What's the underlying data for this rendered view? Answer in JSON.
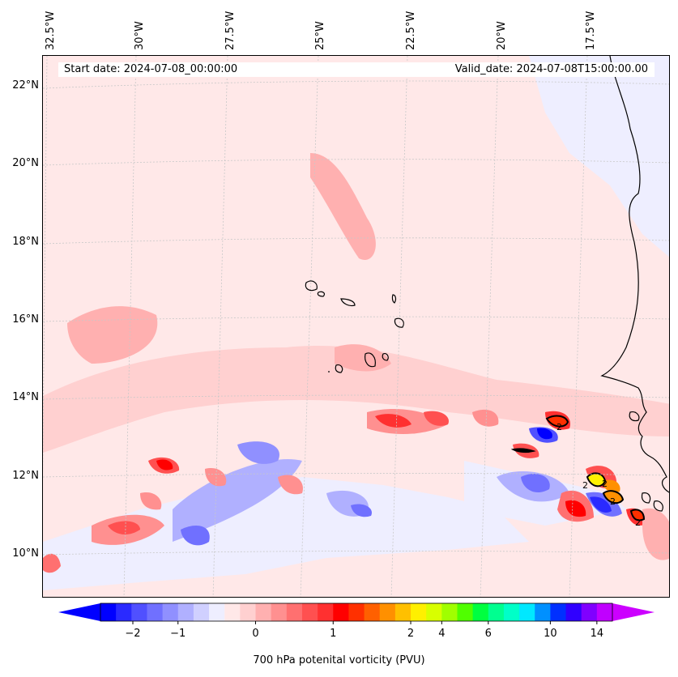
{
  "header": {
    "start_date": "Start date: 2024-07-08_00:00:00",
    "valid_date": "Valid_date: 2024-07-08T15:00:00.00"
  },
  "longitude_labels": [
    "32.5°W",
    "30°W",
    "27.5°W",
    "25°W",
    "22.5°W",
    "20°W",
    "17.5°W"
  ],
  "latitude_labels": [
    "22°N",
    "20°N",
    "18°N",
    "16°N",
    "14°N",
    "12°N",
    "10°N"
  ],
  "colorbar": {
    "label": "700 hPa potenital vorticity (PVU)",
    "tick_labels": [
      "−2",
      "−1",
      "0",
      "1",
      "2",
      "4",
      "6",
      "10",
      "14"
    ],
    "colors": [
      "#0000ff",
      "#2a2aff",
      "#5050ff",
      "#7070ff",
      "#9090ff",
      "#b0b0ff",
      "#d0d0ff",
      "#eeeeff",
      "#ffe8e8",
      "#ffd0d0",
      "#ffb0b0",
      "#ff9090",
      "#ff7070",
      "#ff5050",
      "#ff3030",
      "#ff0000",
      "#ff3000",
      "#ff6000",
      "#ff9000",
      "#ffc000",
      "#fff000",
      "#d8ff00",
      "#a0ff00",
      "#50ff00",
      "#00ff40",
      "#00ff90",
      "#00ffc8",
      "#00e8ff",
      "#0090ff",
      "#0030ff",
      "#3000ff",
      "#8000ff",
      "#c000ff"
    ],
    "under_color": "#0000ff",
    "over_color": "#cc00ff"
  },
  "contour_labels": [
    "2",
    "2",
    "2",
    "2",
    "2"
  ],
  "colors": {
    "background": "#ffe8e8",
    "coastline": "#000000",
    "gridline": "#c8c8c8"
  }
}
